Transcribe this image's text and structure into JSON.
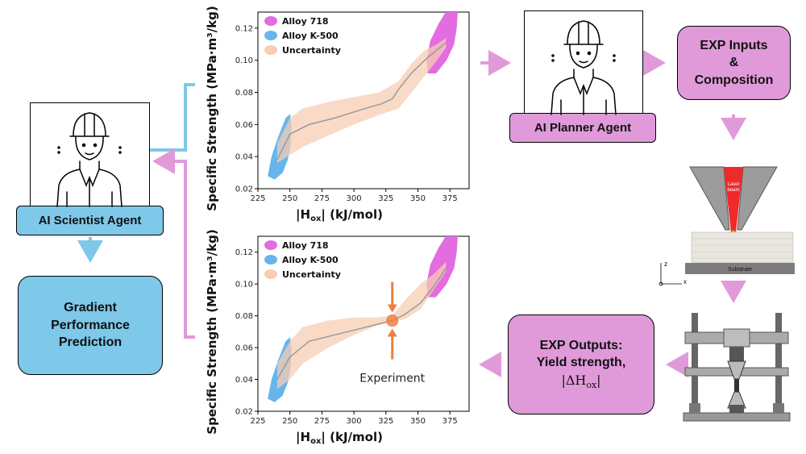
{
  "agents": {
    "scientist": {
      "label": "AI Scientist Agent"
    },
    "planner": {
      "label": "AI Planner Agent"
    }
  },
  "boxes": {
    "gradient": [
      "Gradient",
      "Performance",
      "Prediction"
    ],
    "exp_inputs": [
      "EXP Inputs",
      "&",
      "Composition"
    ],
    "exp_outputs": [
      "EXP Outputs:",
      "Yield strength,",
      "|ΔH",
      "ox",
      "|"
    ]
  },
  "am_diagram": {
    "laser_label": [
      "Laser",
      "beam"
    ],
    "substrate_label": "Substrate",
    "axis_z": "z",
    "axis_x": "x"
  },
  "colors": {
    "blue": "#7ec8e9",
    "pink": "#e09ad9",
    "arrow_blue": "#7ec8e9",
    "arrow_pink": "#e09ad9",
    "alloy718": "#e26ce0",
    "alloyK500": "#66b5ec",
    "uncertainty": "#f7cdb4",
    "mean_line": "#9a9a9a",
    "experiment": "#ef7f3e"
  },
  "chart_data": [
    {
      "type": "area",
      "xlabel": "|H_ox| (kJ/mol)",
      "ylabel": "Specific Strength (MPa·m³/kg)",
      "xlim": [
        225,
        390
      ],
      "ylim": [
        0.02,
        0.13
      ],
      "xticks": [
        225,
        250,
        275,
        300,
        325,
        350,
        375
      ],
      "yticks": [
        0.02,
        0.04,
        0.06,
        0.08,
        0.1,
        0.12
      ],
      "legend": [
        "Alloy 718",
        "Alloy K-500",
        "Uncertainty"
      ],
      "legend_position": "top-left",
      "mean_line": {
        "x": [
          240,
          250,
          265,
          285,
          305,
          322,
          330,
          335,
          345,
          358,
          372
        ],
        "y": [
          0.038,
          0.054,
          0.06,
          0.064,
          0.069,
          0.073,
          0.076,
          0.082,
          0.092,
          0.102,
          0.111
        ]
      },
      "uncertainty_upper": {
        "x": [
          240,
          250,
          260,
          280,
          300,
          320,
          335,
          345,
          355,
          365,
          372
        ],
        "y": [
          0.048,
          0.064,
          0.07,
          0.074,
          0.077,
          0.08,
          0.087,
          0.098,
          0.106,
          0.11,
          0.114
        ]
      },
      "uncertainty_lower": {
        "x": [
          240,
          250,
          260,
          280,
          300,
          320,
          335,
          345,
          355,
          365,
          372
        ],
        "y": [
          0.036,
          0.041,
          0.046,
          0.053,
          0.06,
          0.066,
          0.07,
          0.08,
          0.09,
          0.1,
          0.108
        ]
      }
    },
    {
      "type": "area",
      "xlabel": "|H_ox| (kJ/mol)",
      "ylabel": "Specific Strength (MPa·m³/kg)",
      "xlim": [
        225,
        390
      ],
      "ylim": [
        0.02,
        0.13
      ],
      "xticks": [
        225,
        250,
        275,
        300,
        325,
        350,
        375
      ],
      "yticks": [
        0.02,
        0.04,
        0.06,
        0.08,
        0.1,
        0.12
      ],
      "legend": [
        "Alloy 718",
        "Alloy K-500",
        "Uncertainty"
      ],
      "legend_position": "top-left",
      "mean_line": {
        "x": [
          240,
          250,
          265,
          285,
          305,
          320,
          330,
          340,
          352,
          362,
          372
        ],
        "y": [
          0.04,
          0.054,
          0.064,
          0.068,
          0.072,
          0.075,
          0.077,
          0.081,
          0.088,
          0.098,
          0.11
        ]
      },
      "uncertainty_upper": {
        "x": [
          240,
          250,
          260,
          280,
          300,
          318,
          330,
          340,
          352,
          362,
          372
        ],
        "y": [
          0.05,
          0.064,
          0.073,
          0.077,
          0.079,
          0.079,
          0.08,
          0.09,
          0.1,
          0.106,
          0.114
        ]
      },
      "uncertainty_lower": {
        "x": [
          240,
          250,
          260,
          280,
          300,
          318,
          330,
          340,
          352,
          362,
          372
        ],
        "y": [
          0.034,
          0.04,
          0.05,
          0.06,
          0.068,
          0.074,
          0.076,
          0.078,
          0.084,
          0.096,
          0.108
        ]
      },
      "experiment": {
        "x": 330,
        "y": 0.077,
        "label": "Experiment"
      }
    }
  ],
  "plot_text": {
    "alloy718": "Alloy 718",
    "alloyK500": "Alloy K-500",
    "uncertainty": "Uncertainty",
    "experiment": "Experiment",
    "ylabel_main": "Specific Strength",
    "xlabel_tail": " (kJ/mol)",
    "xlabel_H": "H",
    "xlabel_sub": "ox"
  }
}
